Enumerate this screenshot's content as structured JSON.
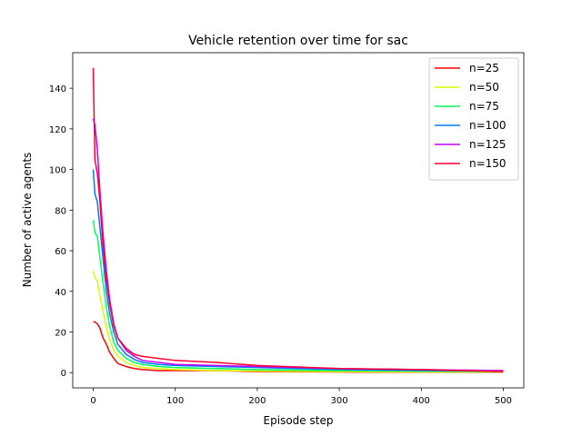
{
  "chart_data": {
    "type": "line",
    "title": "Vehicle retention over time for sac",
    "xlabel": "Episode step",
    "ylabel": "Number of active agents",
    "xlim": [
      -25,
      525
    ],
    "ylim": [
      -7.5,
      157.5
    ],
    "xticks": [
      0,
      100,
      200,
      300,
      400,
      500
    ],
    "yticks": [
      0,
      20,
      40,
      60,
      80,
      100,
      120,
      140
    ],
    "grid": false,
    "legend_position": "top-right",
    "series": [
      {
        "name": "n=25",
        "color": "#ff0000",
        "x": [
          0,
          2,
          5,
          8,
          12,
          16,
          20,
          25,
          30,
          40,
          50,
          60,
          80,
          100,
          150,
          200,
          300,
          400,
          500
        ],
        "y": [
          25,
          25,
          24,
          22,
          17,
          14,
          10,
          7,
          4.5,
          3,
          2,
          1.5,
          1,
          1,
          1,
          0.5,
          0.3,
          0.2,
          0.2
        ]
      },
      {
        "name": "n=50",
        "color": "#d4ff00",
        "x": [
          0,
          2,
          5,
          8,
          12,
          16,
          20,
          25,
          30,
          40,
          50,
          60,
          80,
          100,
          150,
          200,
          300,
          400,
          500
        ],
        "y": [
          50,
          47,
          45,
          38,
          30,
          22,
          16,
          11,
          8,
          5,
          3.5,
          2.5,
          2,
          1.5,
          1,
          0.8,
          0.5,
          0.3,
          0.3
        ]
      },
      {
        "name": "n=75",
        "color": "#00ff5a",
        "x": [
          0,
          2,
          5,
          8,
          12,
          16,
          20,
          25,
          30,
          40,
          50,
          60,
          80,
          100,
          150,
          200,
          300,
          400,
          500
        ],
        "y": [
          75,
          69,
          67,
          57,
          44,
          32,
          23,
          15,
          11,
          7,
          5,
          4,
          3,
          2.5,
          2,
          1.5,
          1,
          0.8,
          0.5
        ]
      },
      {
        "name": "n=100",
        "color": "#0078ff",
        "x": [
          0,
          2,
          5,
          8,
          12,
          16,
          20,
          25,
          30,
          40,
          50,
          60,
          80,
          100,
          150,
          200,
          300,
          400,
          500
        ],
        "y": [
          100,
          88,
          84,
          72,
          56,
          40,
          29,
          20,
          14,
          9,
          6.5,
          5,
          4,
          3.5,
          3,
          2.5,
          1.5,
          1,
          0.8
        ]
      },
      {
        "name": "n=125",
        "color": "#c800ff",
        "x": [
          0,
          2,
          5,
          8,
          12,
          16,
          20,
          25,
          30,
          40,
          50,
          60,
          80,
          100,
          150,
          200,
          300,
          400,
          500
        ],
        "y": [
          125,
          122,
          110,
          90,
          68,
          50,
          36,
          24,
          17,
          11,
          8,
          6,
          5,
          4,
          3.5,
          3,
          2,
          1.5,
          1
        ]
      },
      {
        "name": "n=150",
        "color": "#ff0030",
        "x": [
          0,
          2,
          5,
          8,
          12,
          16,
          20,
          25,
          30,
          40,
          50,
          60,
          80,
          100,
          150,
          200,
          300,
          400,
          500
        ],
        "y": [
          150,
          105,
          98,
          85,
          62,
          46,
          34,
          23,
          17,
          12,
          9,
          8,
          7,
          6,
          5,
          3.5,
          2,
          1.5,
          0.5
        ]
      }
    ]
  }
}
